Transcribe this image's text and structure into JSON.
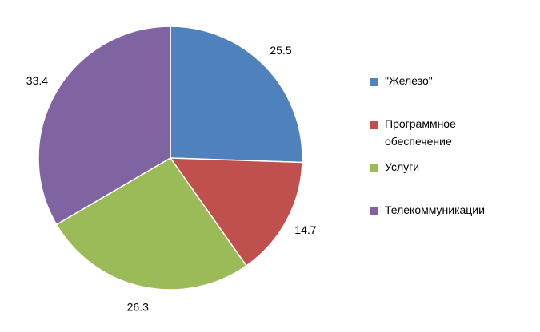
{
  "chart_data": {
    "type": "pie",
    "categories": [
      "\"Железо\"",
      "Программное обеспечение",
      "Услуги",
      "Телекоммуникации"
    ],
    "values": [
      25.5,
      14.7,
      26.3,
      33.4
    ],
    "colors": [
      "#4f81bd",
      "#c0504d",
      "#9bbb59",
      "#8064a2"
    ],
    "legend": "right"
  }
}
